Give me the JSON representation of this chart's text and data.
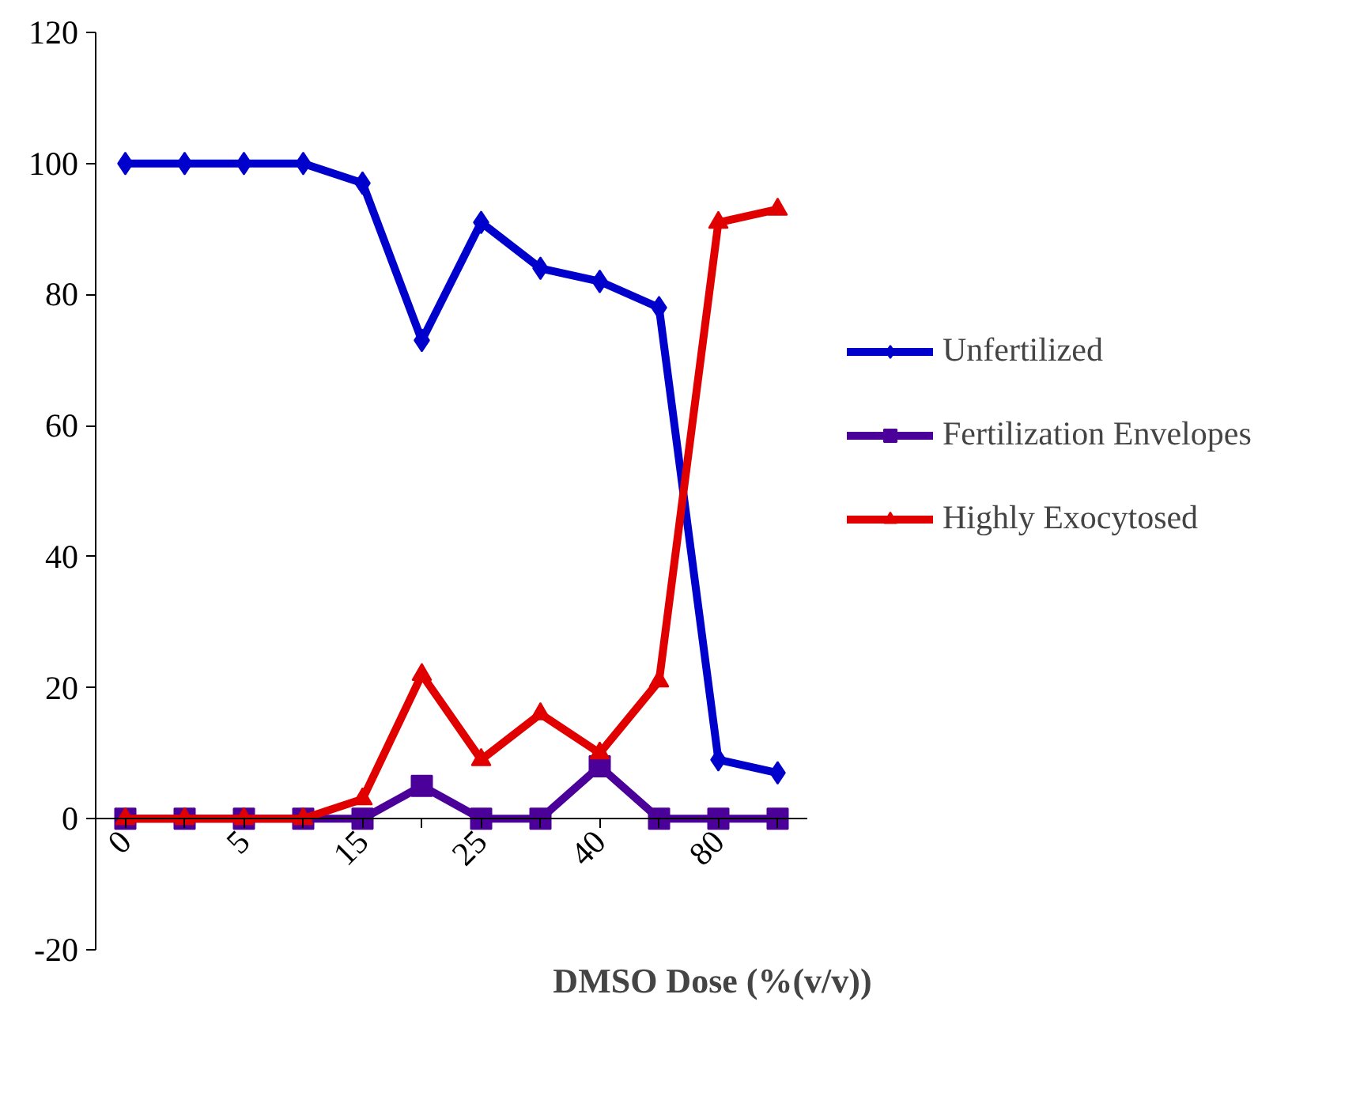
{
  "chart_data": {
    "type": "line",
    "xlabel": "DMSO Dose (%(v/v))",
    "categories": [
      "0",
      null,
      "5",
      null,
      "15",
      null,
      "25",
      null,
      "40",
      null,
      "80",
      null
    ],
    "series": [
      {
        "name": "Unfertilized",
        "color": "#0000cc",
        "marker": "diamond",
        "values": [
          100,
          100,
          100,
          100,
          97,
          73,
          91,
          84,
          82,
          78,
          9,
          7
        ]
      },
      {
        "name": "Fertilization Envelopes",
        "color": "#4b0099",
        "marker": "square",
        "values": [
          0,
          0,
          0,
          0,
          0,
          5,
          0,
          0,
          8,
          0,
          0,
          0
        ]
      },
      {
        "name": "Highly Exocytosed",
        "color": "#e00000",
        "marker": "triangle",
        "values": [
          0,
          0,
          0,
          0,
          3,
          22,
          9,
          16,
          10,
          21,
          91,
          93
        ]
      }
    ],
    "ylim": [
      -20,
      120
    ],
    "yticks": [
      -20,
      0,
      20,
      40,
      60,
      80,
      100,
      120
    ],
    "grid": false,
    "legend": "right"
  }
}
